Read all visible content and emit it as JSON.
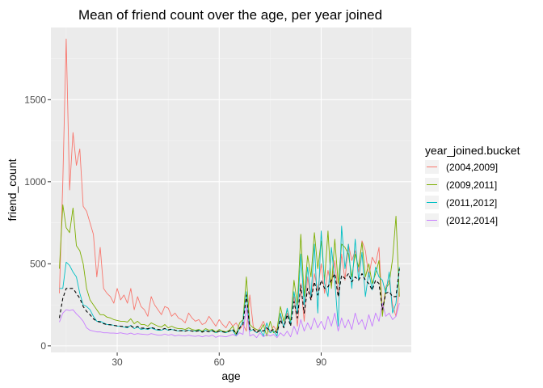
{
  "chart_data": {
    "type": "line",
    "title": "Mean of friend count over the age, per year joined",
    "xlabel": "age",
    "ylabel": "friend_count",
    "xlim": [
      10.5,
      116.5
    ],
    "ylim": [
      -40,
      1940
    ],
    "xticks": [
      30,
      60,
      90
    ],
    "yticks": [
      0,
      500,
      1000,
      1500
    ],
    "xtick_labels": [
      "30",
      "60",
      "90"
    ],
    "ytick_labels": [
      "0",
      "500",
      "1000",
      "1500"
    ],
    "grid": true,
    "legend": {
      "title": "year_joined.bucket",
      "position": "right"
    },
    "series": [
      {
        "name": "(2004,2009]",
        "color": "#F8766D",
        "x": [
          13,
          14,
          15,
          16,
          17,
          18,
          19,
          20,
          21,
          22,
          23,
          24,
          25,
          26,
          27,
          28,
          29,
          30,
          31,
          32,
          33,
          34,
          35,
          36,
          37,
          38,
          39,
          40,
          41,
          42,
          43,
          44,
          45,
          46,
          47,
          48,
          49,
          50,
          51,
          52,
          53,
          54,
          55,
          56,
          57,
          58,
          59,
          60,
          61,
          62,
          63,
          64,
          65,
          66,
          67,
          68,
          69,
          70,
          71,
          72,
          73,
          74,
          75,
          76,
          77,
          78,
          79,
          80,
          81,
          82,
          83,
          84,
          85,
          86,
          87,
          88,
          89,
          90,
          91,
          92,
          93,
          94,
          95,
          96,
          97,
          98,
          99,
          100,
          101,
          102,
          103,
          104,
          105,
          106,
          107,
          108,
          109,
          110,
          111,
          112,
          113
        ],
        "y": [
          320,
          1000,
          1870,
          950,
          1300,
          1100,
          1200,
          850,
          820,
          750,
          680,
          420,
          600,
          350,
          320,
          300,
          260,
          350,
          280,
          310,
          260,
          350,
          220,
          300,
          240,
          220,
          180,
          300,
          250,
          220,
          190,
          240,
          230,
          180,
          200,
          170,
          160,
          140,
          200,
          170,
          150,
          160,
          130,
          140,
          180,
          150,
          120,
          160,
          130,
          110,
          150,
          120,
          140,
          100,
          130,
          90,
          310,
          120,
          80,
          110,
          150,
          100,
          80,
          120,
          90,
          180,
          110,
          200,
          140,
          300,
          120,
          380,
          150,
          420,
          280,
          440,
          340,
          500,
          320,
          460,
          360,
          520,
          300,
          560,
          400,
          620,
          520,
          580,
          450,
          640,
          580,
          420,
          540,
          500,
          600,
          200,
          360,
          400,
          250,
          180,
          350
        ]
      },
      {
        "name": "(2009,2011]",
        "color": "#7CAE00",
        "x": [
          13,
          14,
          15,
          16,
          17,
          18,
          19,
          20,
          21,
          22,
          23,
          24,
          25,
          26,
          27,
          28,
          29,
          30,
          31,
          32,
          33,
          34,
          35,
          36,
          37,
          38,
          39,
          40,
          41,
          42,
          43,
          44,
          45,
          46,
          47,
          48,
          49,
          50,
          51,
          52,
          53,
          54,
          55,
          56,
          57,
          58,
          59,
          60,
          61,
          62,
          63,
          64,
          65,
          66,
          67,
          68,
          69,
          70,
          71,
          72,
          73,
          74,
          75,
          76,
          77,
          78,
          79,
          80,
          81,
          82,
          83,
          84,
          85,
          86,
          87,
          88,
          89,
          90,
          91,
          92,
          93,
          94,
          95,
          96,
          97,
          98,
          99,
          100,
          101,
          102,
          103,
          104,
          105,
          106,
          107,
          108,
          109,
          110,
          111,
          112,
          113
        ],
        "y": [
          470,
          860,
          720,
          690,
          840,
          610,
          580,
          500,
          350,
          280,
          250,
          220,
          190,
          190,
          175,
          170,
          160,
          155,
          150,
          150,
          145,
          165,
          135,
          150,
          130,
          130,
          120,
          140,
          130,
          120,
          115,
          130,
          110,
          120,
          110,
          105,
          105,
          100,
          110,
          100,
          95,
          100,
          90,
          105,
          95,
          100,
          85,
          100,
          90,
          85,
          95,
          120,
          70,
          140,
          160,
          420,
          130,
          110,
          100,
          90,
          130,
          60,
          150,
          80,
          100,
          240,
          150,
          220,
          150,
          400,
          250,
          680,
          300,
          550,
          420,
          690,
          470,
          640,
          400,
          700,
          350,
          650,
          380,
          620,
          600,
          560,
          420,
          560,
          480,
          630,
          420,
          500,
          380,
          440,
          520,
          180,
          350,
          380,
          530,
          790,
          300
        ]
      },
      {
        "name": "(2011,2012]",
        "color": "#00BFC4",
        "x": [
          13,
          14,
          15,
          16,
          17,
          18,
          19,
          20,
          21,
          22,
          23,
          24,
          25,
          26,
          27,
          28,
          29,
          30,
          31,
          32,
          33,
          34,
          35,
          36,
          37,
          38,
          39,
          40,
          41,
          42,
          43,
          44,
          45,
          46,
          47,
          48,
          49,
          50,
          51,
          52,
          53,
          54,
          55,
          56,
          57,
          58,
          59,
          60,
          61,
          62,
          63,
          64,
          65,
          66,
          67,
          68,
          69,
          70,
          71,
          72,
          73,
          74,
          75,
          76,
          77,
          78,
          79,
          80,
          81,
          82,
          83,
          84,
          85,
          86,
          87,
          88,
          89,
          90,
          91,
          92,
          93,
          94,
          95,
          96,
          97,
          98,
          99,
          100,
          101,
          102,
          103,
          104,
          105,
          106,
          107,
          108,
          109,
          110,
          111,
          112,
          113
        ],
        "y": [
          350,
          350,
          510,
          490,
          450,
          420,
          320,
          250,
          240,
          220,
          180,
          150,
          150,
          140,
          130,
          130,
          125,
          120,
          120,
          115,
          110,
          125,
          105,
          115,
          100,
          105,
          100,
          110,
          100,
          95,
          95,
          105,
          95,
          100,
          95,
          90,
          95,
          90,
          95,
          90,
          90,
          95,
          85,
          95,
          85,
          95,
          80,
          90,
          85,
          80,
          90,
          95,
          60,
          110,
          150,
          330,
          90,
          100,
          80,
          100,
          60,
          140,
          80,
          90,
          60,
          200,
          110,
          230,
          130,
          330,
          200,
          560,
          250,
          480,
          300,
          620,
          200,
          700,
          380,
          300,
          600,
          400,
          120,
          730,
          470,
          620,
          350,
          650,
          400,
          570,
          300,
          450,
          340,
          480,
          420,
          400,
          320,
          450,
          200,
          260,
          480
        ]
      },
      {
        "name": "(2012,2014]",
        "color": "#C77CFF",
        "x": [
          13,
          14,
          15,
          16,
          17,
          18,
          19,
          20,
          21,
          22,
          23,
          24,
          25,
          26,
          27,
          28,
          29,
          30,
          31,
          32,
          33,
          34,
          35,
          36,
          37,
          38,
          39,
          40,
          41,
          42,
          43,
          44,
          45,
          46,
          47,
          48,
          49,
          50,
          51,
          52,
          53,
          54,
          55,
          56,
          57,
          58,
          59,
          60,
          61,
          62,
          63,
          64,
          65,
          66,
          67,
          68,
          69,
          70,
          71,
          72,
          73,
          74,
          75,
          76,
          77,
          78,
          79,
          80,
          81,
          82,
          83,
          84,
          85,
          86,
          87,
          88,
          89,
          90,
          91,
          92,
          93,
          94,
          95,
          96,
          97,
          98,
          99,
          100,
          101,
          102,
          103,
          104,
          105,
          106,
          107,
          108,
          109,
          110,
          111,
          112,
          113
        ],
        "y": [
          145,
          200,
          220,
          215,
          220,
          195,
          175,
          150,
          110,
          95,
          90,
          85,
          85,
          80,
          80,
          78,
          78,
          76,
          80,
          75,
          72,
          78,
          70,
          75,
          72,
          70,
          68,
          75,
          70,
          65,
          65,
          72,
          65,
          70,
          60,
          65,
          62,
          60,
          65,
          60,
          58,
          62,
          55,
          62,
          58,
          65,
          52,
          60,
          58,
          55,
          62,
          70,
          60,
          80,
          70,
          240,
          60,
          70,
          50,
          80,
          55,
          70,
          60,
          70,
          50,
          80,
          60,
          90,
          55,
          120,
          70,
          160,
          90,
          140,
          100,
          170,
          110,
          150,
          100,
          180,
          120,
          200,
          90,
          170,
          110,
          160,
          100,
          200,
          130,
          160,
          100,
          190,
          120,
          200,
          150,
          260,
          180,
          200,
          160,
          180,
          260
        ]
      },
      {
        "name": "",
        "color": "#000000",
        "dashed": true,
        "x": [
          13,
          14,
          15,
          16,
          17,
          18,
          19,
          20,
          21,
          22,
          23,
          24,
          25,
          26,
          27,
          28,
          29,
          30,
          31,
          32,
          33,
          34,
          35,
          36,
          37,
          38,
          39,
          40,
          41,
          42,
          43,
          44,
          45,
          46,
          47,
          48,
          49,
          50,
          51,
          52,
          53,
          54,
          55,
          56,
          57,
          58,
          59,
          60,
          61,
          62,
          63,
          64,
          65,
          66,
          67,
          68,
          69,
          70,
          71,
          72,
          73,
          74,
          75,
          76,
          77,
          78,
          79,
          80,
          81,
          82,
          83,
          84,
          85,
          86,
          87,
          88,
          89,
          90,
          91,
          92,
          93,
          94,
          95,
          96,
          97,
          98,
          99,
          100,
          101,
          102,
          103,
          104,
          105,
          106,
          107,
          108,
          109,
          110,
          111,
          112,
          113
        ],
        "y": [
          170,
          290,
          350,
          350,
          350,
          320,
          290,
          240,
          210,
          190,
          165,
          150,
          145,
          135,
          130,
          128,
          125,
          122,
          120,
          118,
          115,
          122,
          110,
          118,
          108,
          108,
          104,
          112,
          106,
          100,
          98,
          106,
          98,
          102,
          96,
          92,
          92,
          90,
          96,
          90,
          88,
          92,
          84,
          92,
          86,
          92,
          80,
          90,
          86,
          82,
          90,
          100,
          72,
          110,
          130,
          310,
          100,
          100,
          80,
          95,
          90,
          110,
          90,
          100,
          80,
          160,
          110,
          190,
          120,
          270,
          170,
          370,
          200,
          350,
          280,
          390,
          310,
          400,
          350,
          360,
          400,
          440,
          300,
          430,
          410,
          440,
          390,
          420,
          400,
          440,
          400,
          380,
          340,
          400,
          380,
          220,
          320,
          330,
          300,
          300,
          470
        ]
      }
    ]
  }
}
